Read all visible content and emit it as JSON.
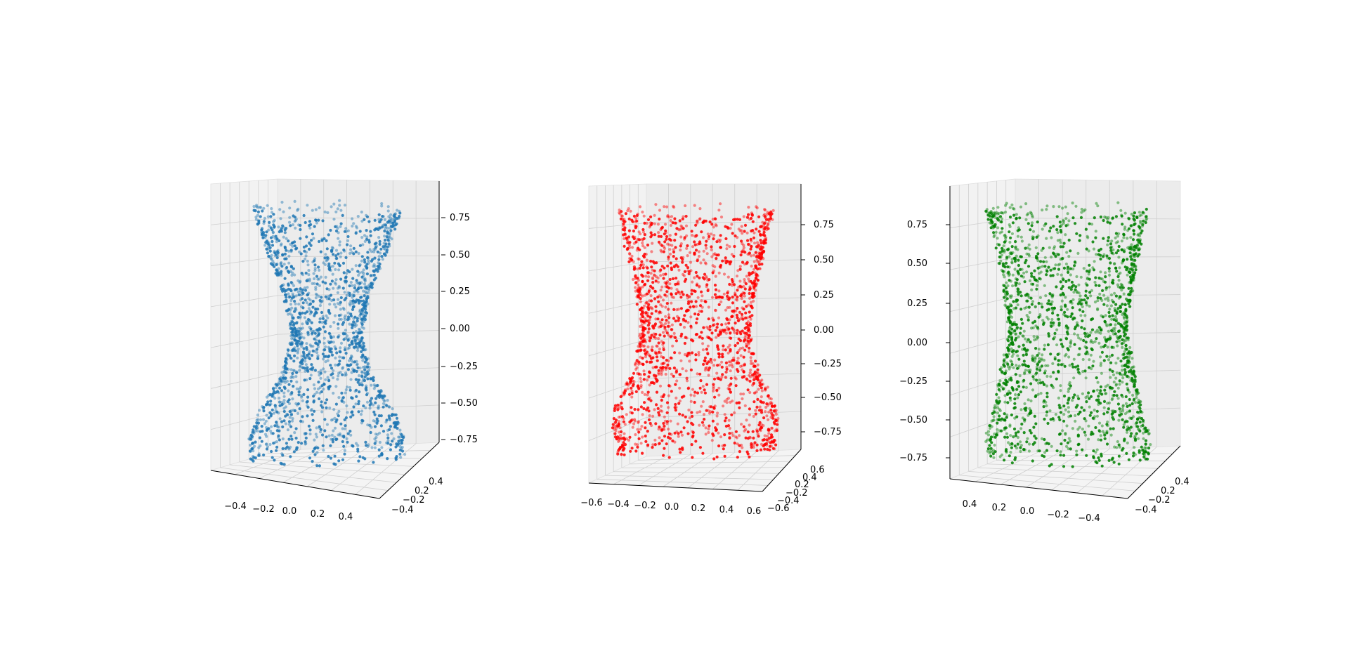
{
  "chart_data": [
    {
      "type": "scatter",
      "projection": "3d",
      "color": "#1f77b4",
      "shape": "hourglass",
      "radius_profile": {
        "z": [
          -0.9,
          -0.75,
          -0.55,
          -0.3,
          0.0,
          0.3,
          0.6,
          0.9
        ],
        "r": [
          0.48,
          0.48,
          0.42,
          0.28,
          0.22,
          0.27,
          0.38,
          0.47
        ]
      },
      "n_points": 1900,
      "xlim": [
        -0.55,
        0.55
      ],
      "ylim": [
        -0.5,
        0.5
      ],
      "zlim": [
        -0.95,
        0.95
      ],
      "xticks": [
        "−0.4",
        "−0.2",
        "0.0",
        "0.2",
        "0.4"
      ],
      "yticks": [
        "−0.4",
        "−0.2",
        "0.2",
        "0.4"
      ],
      "zticks": [
        "0.75",
        "0.50",
        "0.25",
        "0.00",
        "−0.25",
        "−0.50",
        "−0.75"
      ],
      "grid": true
    },
    {
      "type": "scatter",
      "projection": "3d",
      "color": "#ff0000",
      "shape": "hourglass",
      "radius_profile": {
        "z": [
          -0.9,
          -0.7,
          -0.5,
          -0.3,
          0.0,
          0.3,
          0.6,
          0.9
        ],
        "r": [
          0.52,
          0.56,
          0.52,
          0.42,
          0.36,
          0.4,
          0.46,
          0.52
        ]
      },
      "n_points": 1900,
      "xlim": [
        -0.62,
        0.62
      ],
      "ylim": [
        -0.62,
        0.62
      ],
      "zlim": [
        -0.95,
        0.95
      ],
      "xticks": [
        "−0.6",
        "−0.4",
        "−0.2",
        "0.0",
        "0.2",
        "0.4",
        "0.6"
      ],
      "yticks": [
        "−0.6",
        "−0.4",
        "−0.2",
        "0.2",
        "0.4",
        "0.6"
      ],
      "zticks": [
        "0.75",
        "0.50",
        "0.25",
        "0.00",
        "−0.25",
        "−0.50",
        "−0.75"
      ],
      "grid": true
    },
    {
      "type": "scatter",
      "projection": "3d",
      "color": "#008000",
      "shape": "hourglass",
      "radius_profile": {
        "z": [
          -0.9,
          -0.75,
          -0.55,
          -0.3,
          0.0,
          0.3,
          0.6,
          0.9
        ],
        "r": [
          0.44,
          0.46,
          0.42,
          0.38,
          0.33,
          0.36,
          0.4,
          0.46
        ]
      },
      "n_points": 1900,
      "xlim": [
        -0.5,
        0.5
      ],
      "ylim": [
        -0.5,
        0.5
      ],
      "zlim": [
        -0.95,
        0.95
      ],
      "xticks": [
        "0.4",
        "0.2",
        "0.0",
        "−0.2",
        "−0.4"
      ],
      "yticks": [
        "−0.4",
        "−0.2",
        "0.2",
        "0.4"
      ],
      "zticks": [
        "0.75",
        "0.50",
        "0.25",
        "0.00",
        "−0.25",
        "−0.50",
        "−0.75"
      ],
      "grid": true
    }
  ]
}
